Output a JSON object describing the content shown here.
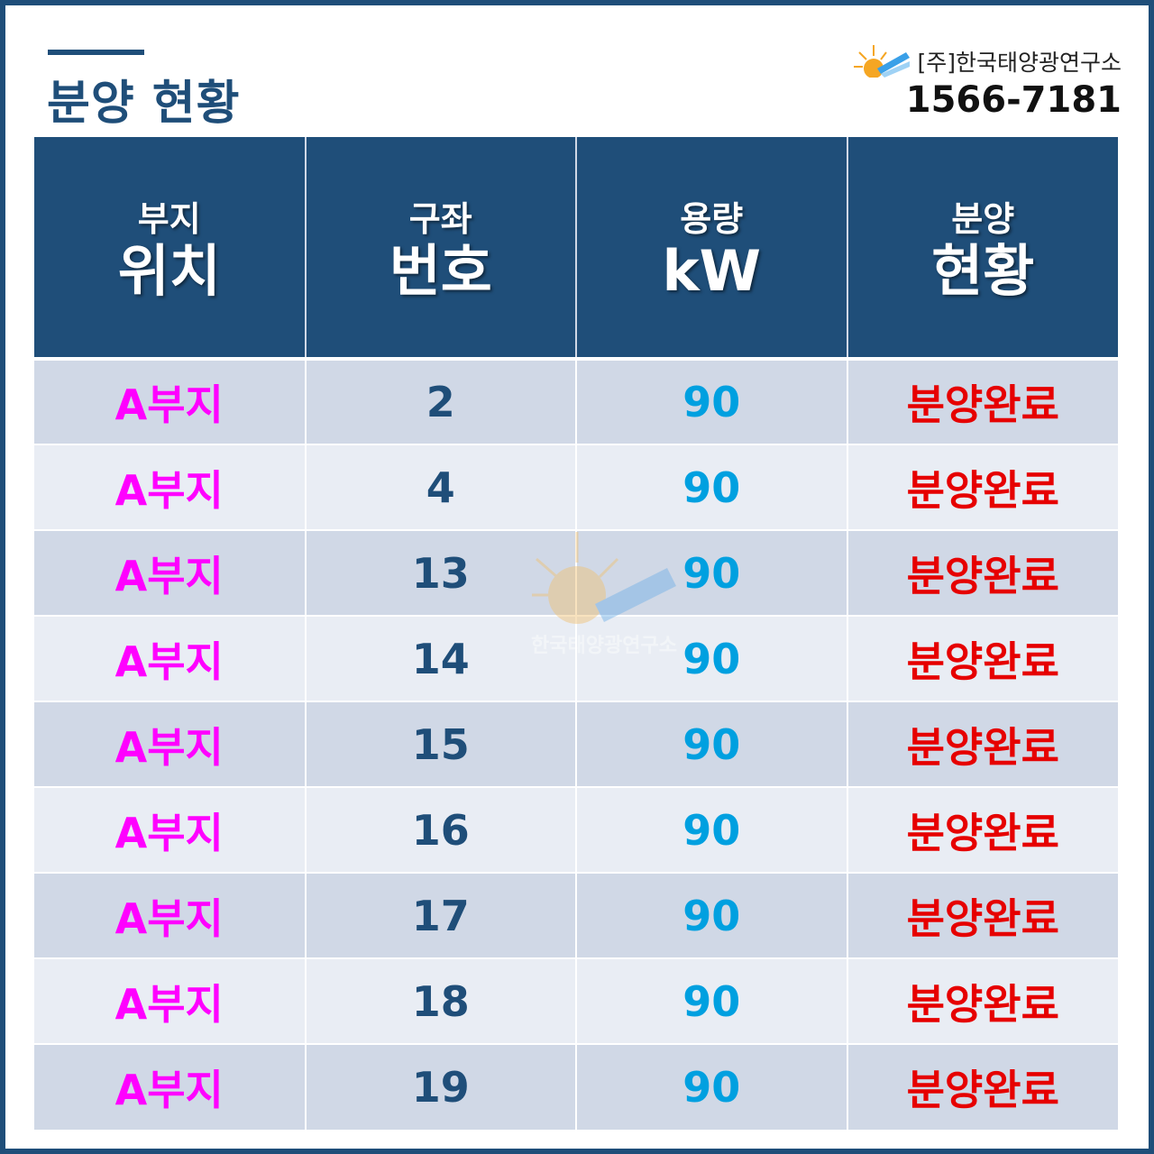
{
  "title": "분양 현황",
  "company": {
    "name": "[주]한국태양광연구소",
    "phone": "1566-7181",
    "logo_icon": "sun-solar-panel-icon"
  },
  "watermark": "한국태양광연구소",
  "colors": {
    "header_bg": "#1f4e79",
    "site": "#ff00ff",
    "number": "#1f4e79",
    "capacity": "#00a0e0",
    "status": "#e60000"
  },
  "table": {
    "headers": [
      {
        "l1": "부지",
        "l2": "위치"
      },
      {
        "l1": "구좌",
        "l2": "번호"
      },
      {
        "l1": "용량",
        "l2": "kW"
      },
      {
        "l1": "분양",
        "l2": "현황"
      }
    ],
    "rows": [
      {
        "site": "A부지",
        "number": "2",
        "capacity": "90",
        "status": "분양완료"
      },
      {
        "site": "A부지",
        "number": "4",
        "capacity": "90",
        "status": "분양완료"
      },
      {
        "site": "A부지",
        "number": "13",
        "capacity": "90",
        "status": "분양완료"
      },
      {
        "site": "A부지",
        "number": "14",
        "capacity": "90",
        "status": "분양완료"
      },
      {
        "site": "A부지",
        "number": "15",
        "capacity": "90",
        "status": "분양완료"
      },
      {
        "site": "A부지",
        "number": "16",
        "capacity": "90",
        "status": "분양완료"
      },
      {
        "site": "A부지",
        "number": "17",
        "capacity": "90",
        "status": "분양완료"
      },
      {
        "site": "A부지",
        "number": "18",
        "capacity": "90",
        "status": "분양완료"
      },
      {
        "site": "A부지",
        "number": "19",
        "capacity": "90",
        "status": "분양완료"
      }
    ]
  }
}
